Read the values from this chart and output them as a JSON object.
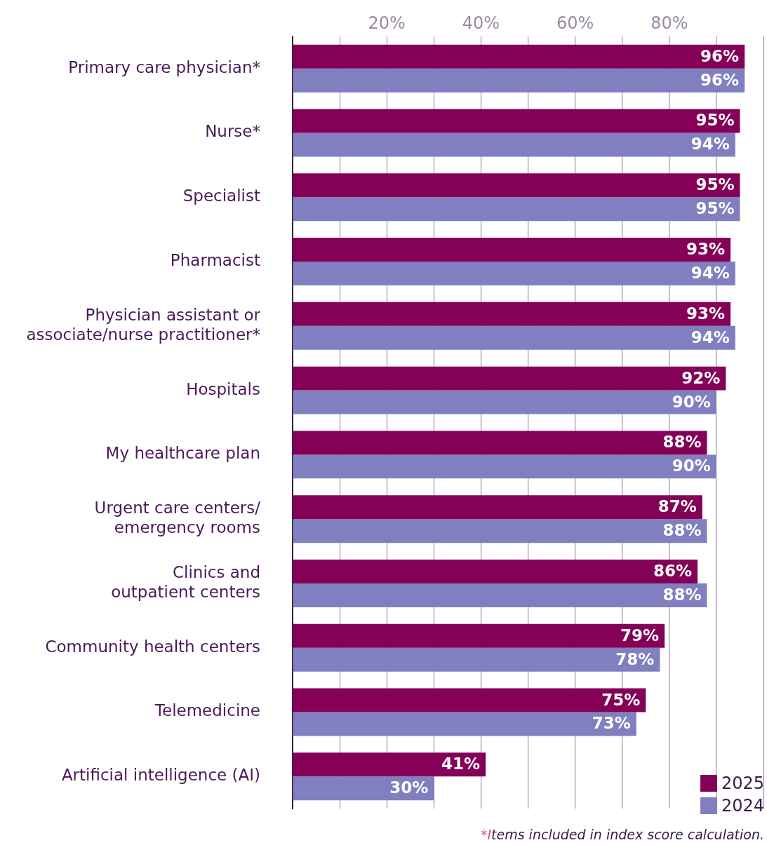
{
  "chart_data": {
    "type": "bar",
    "orientation": "horizontal",
    "categories": [
      "Primary care physician*",
      "Nurse*",
      "Specialist",
      "Pharmacist",
      [
        "Physician assistant or",
        "associate/nurse practitioner*"
      ],
      "Hospitals",
      "My healthcare plan",
      [
        "Urgent care centers/",
        "emergency rooms"
      ],
      [
        "Clinics and",
        "outpatient centers"
      ],
      "Community health centers",
      "Telemedicine",
      "Artificial intelligence (AI)"
    ],
    "series": [
      {
        "name": "2025",
        "color": "#850057",
        "values": [
          96,
          95,
          95,
          93,
          93,
          92,
          88,
          87,
          86,
          79,
          75,
          41
        ],
        "value_labels": [
          "96%",
          "95%",
          "95%",
          "93%",
          "93%",
          "92%",
          "88%",
          "87%",
          "86%",
          "79%",
          "75%",
          "41%"
        ]
      },
      {
        "name": "2024",
        "color": "#8080c0",
        "values": [
          96,
          94,
          95,
          94,
          94,
          90,
          90,
          88,
          88,
          78,
          73,
          30
        ],
        "value_labels": [
          "96%",
          "94%",
          "95%",
          "94%",
          "94%",
          "90%",
          "90%",
          "88%",
          "88%",
          "78%",
          "73%",
          "30%"
        ]
      }
    ],
    "xlim": [
      0,
      100
    ],
    "xticks": [
      {
        "value": 0,
        "label": null
      },
      {
        "value": 10,
        "label": null
      },
      {
        "value": 20,
        "label": "20%"
      },
      {
        "value": 30,
        "label": null
      },
      {
        "value": 40,
        "label": "40%"
      },
      {
        "value": 50,
        "label": null
      },
      {
        "value": 60,
        "label": "60%"
      },
      {
        "value": 70,
        "label": null
      },
      {
        "value": 80,
        "label": "80%"
      },
      {
        "value": 90,
        "label": null
      },
      {
        "value": 100,
        "label": null
      }
    ],
    "grid": "x",
    "legend": "bottom right",
    "annotations": [
      "*Items included in index score calculation."
    ]
  }
}
